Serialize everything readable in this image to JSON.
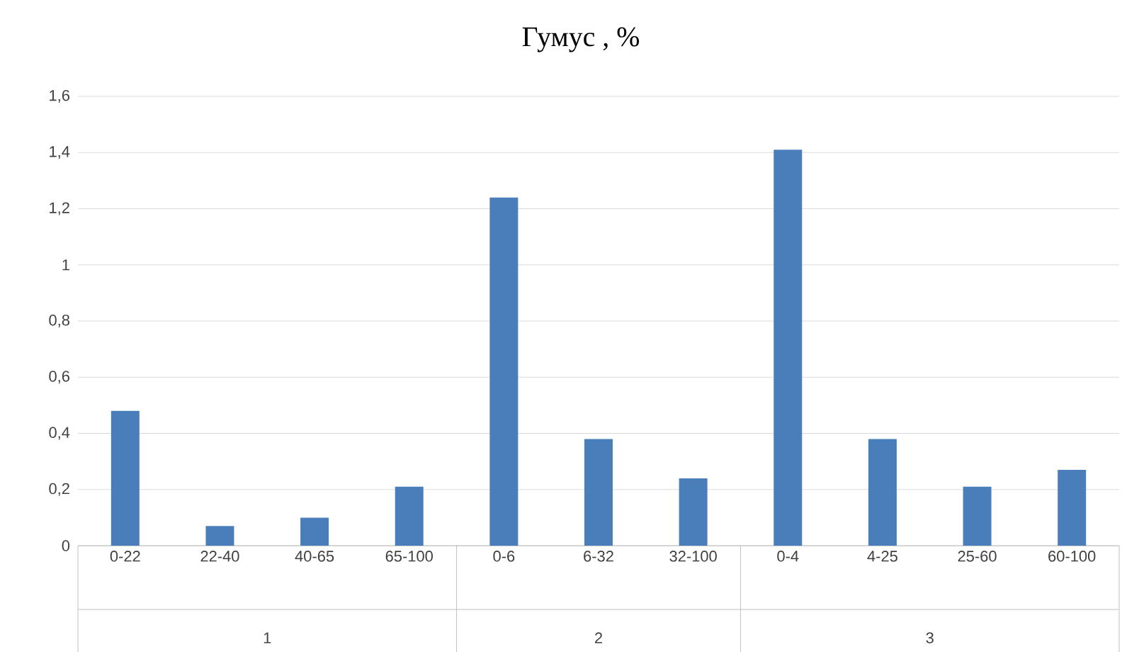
{
  "chart_data": {
    "type": "bar",
    "title": "Гумус , %",
    "categories": [
      "0-22",
      "22-40",
      "40-65",
      "65-100",
      "0-6",
      "6-32",
      "32-100",
      "0-4",
      "4-25",
      "25-60",
      "60-100"
    ],
    "values": [
      0.48,
      0.07,
      0.1,
      0.21,
      1.24,
      0.38,
      0.24,
      1.41,
      0.38,
      0.21,
      0.27
    ],
    "color": "#4a7ebb",
    "ylim": [
      0,
      1.6
    ],
    "yticks": [
      0,
      {
        "value": 0.2,
        "label": "0,2"
      },
      {
        "value": 0.4,
        "label": "0,4"
      },
      {
        "value": 0.6,
        "label": "0,6"
      },
      {
        "value": 0.8,
        "label": "0,8"
      },
      1,
      {
        "value": 1.2,
        "label": "1,2"
      },
      {
        "value": 1.4,
        "label": "1,4"
      },
      {
        "value": 1.6,
        "label": "1,6"
      }
    ],
    "grid": "y",
    "annotations": [
      "1",
      "2",
      "3"
    ]
  }
}
